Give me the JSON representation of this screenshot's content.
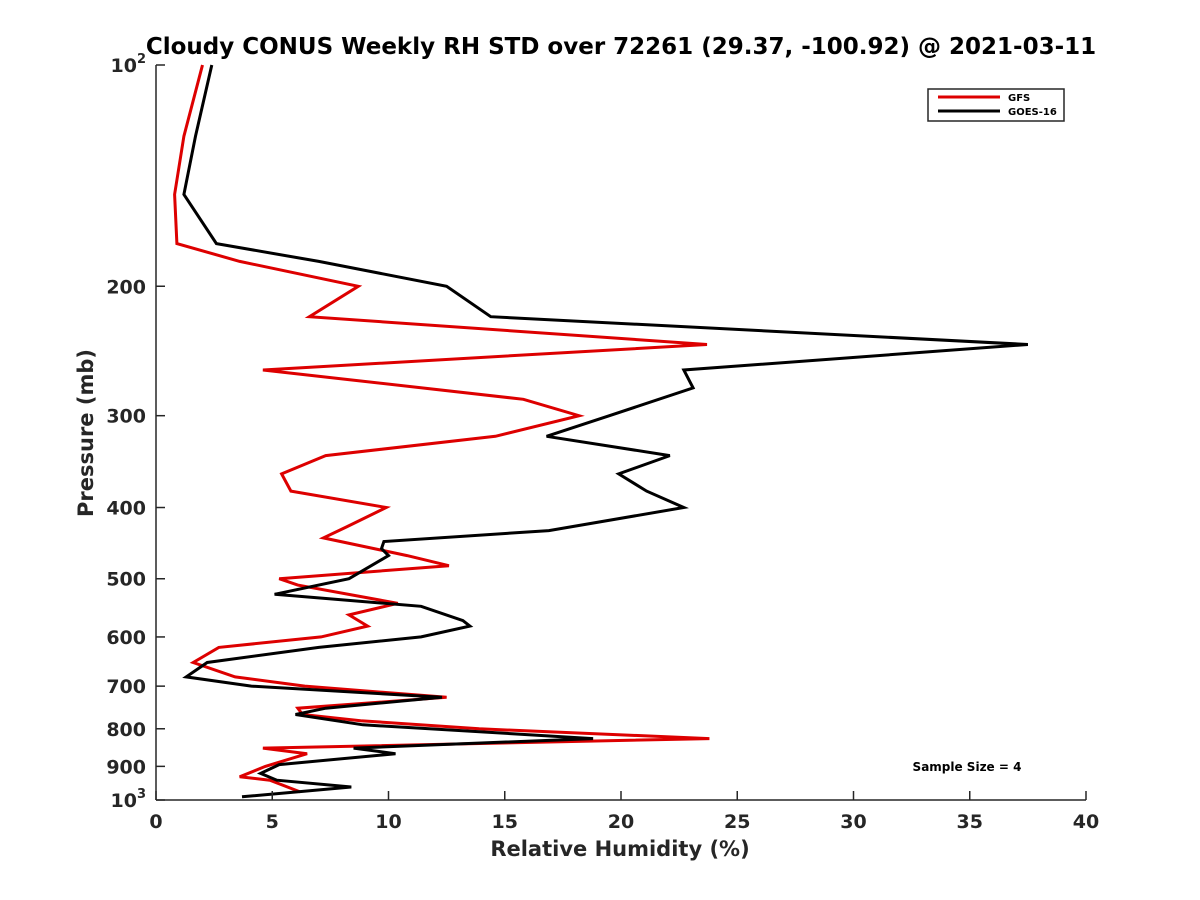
{
  "chart_data": {
    "type": "line",
    "title": "Cloudy CONUS Weekly RH STD over 72261 (29.37, -100.92) @ 2021-03-11",
    "xlabel": "Relative Humidity (%)",
    "ylabel": "Pressure (mb)",
    "xlim": [
      0,
      40
    ],
    "ylim": [
      100,
      1000
    ],
    "y_scale": "log",
    "y_reversed": true,
    "x_ticks": [
      0,
      5,
      10,
      15,
      20,
      25,
      30,
      35,
      40
    ],
    "x_tick_labels": [
      "0",
      "5",
      "10",
      "15",
      "20",
      "25",
      "30",
      "35",
      "40"
    ],
    "y_ticks": [
      100,
      200,
      300,
      400,
      500,
      600,
      700,
      800,
      900,
      1000
    ],
    "y_tick_labels": [
      {
        "base": "10",
        "sup": "2"
      },
      {
        "base": "200"
      },
      {
        "base": "300"
      },
      {
        "base": "400"
      },
      {
        "base": "500"
      },
      {
        "base": "600"
      },
      {
        "base": "700"
      },
      {
        "base": "800"
      },
      {
        "base": "900"
      },
      {
        "base": "10",
        "sup": "3"
      }
    ],
    "grid": false,
    "legend_position": "top-right",
    "annotation": "Sample Size = 4",
    "series": [
      {
        "name": "GFS",
        "color": "#dd0000",
        "points": [
          [
            2.0,
            100
          ],
          [
            1.2,
            125
          ],
          [
            0.8,
            150
          ],
          [
            0.9,
            175
          ],
          [
            3.6,
            185
          ],
          [
            8.7,
            200
          ],
          [
            6.6,
            220
          ],
          [
            23.7,
            240
          ],
          [
            4.6,
            260
          ],
          [
            15.8,
            285
          ],
          [
            18.2,
            300
          ],
          [
            14.6,
            320
          ],
          [
            7.3,
            340
          ],
          [
            5.4,
            360
          ],
          [
            5.8,
            380
          ],
          [
            9.9,
            400
          ],
          [
            8.2,
            425
          ],
          [
            7.2,
            440
          ],
          [
            10.8,
            465
          ],
          [
            12.6,
            480
          ],
          [
            5.3,
            500
          ],
          [
            6.1,
            510
          ],
          [
            10.4,
            540
          ],
          [
            8.3,
            560
          ],
          [
            9.1,
            580
          ],
          [
            7.1,
            600
          ],
          [
            2.7,
            620
          ],
          [
            1.6,
            650
          ],
          [
            3.4,
            680
          ],
          [
            6.4,
            700
          ],
          [
            12.5,
            725
          ],
          [
            6.1,
            750
          ],
          [
            6.3,
            765
          ],
          [
            8.8,
            780
          ],
          [
            13.9,
            800
          ],
          [
            23.8,
            825
          ],
          [
            4.6,
            850
          ],
          [
            6.5,
            865
          ],
          [
            4.7,
            900
          ],
          [
            3.6,
            930
          ],
          [
            4.9,
            940
          ],
          [
            6.2,
            975
          ]
        ]
      },
      {
        "name": "GOES-16",
        "color": "#000000",
        "points": [
          [
            2.4,
            100
          ],
          [
            1.7,
            125
          ],
          [
            1.2,
            150
          ],
          [
            2.6,
            175
          ],
          [
            7.0,
            185
          ],
          [
            12.5,
            200
          ],
          [
            14.4,
            220
          ],
          [
            37.5,
            240
          ],
          [
            22.7,
            260
          ],
          [
            23.1,
            275
          ],
          [
            19.5,
            300
          ],
          [
            16.8,
            320
          ],
          [
            22.1,
            340
          ],
          [
            19.9,
            360
          ],
          [
            21.1,
            380
          ],
          [
            22.7,
            400
          ],
          [
            16.9,
            430
          ],
          [
            9.8,
            445
          ],
          [
            9.7,
            455
          ],
          [
            10.0,
            465
          ],
          [
            8.3,
            500
          ],
          [
            5.1,
            525
          ],
          [
            11.4,
            545
          ],
          [
            13.2,
            570
          ],
          [
            13.5,
            580
          ],
          [
            11.4,
            600
          ],
          [
            7.0,
            620
          ],
          [
            2.2,
            650
          ],
          [
            1.3,
            680
          ],
          [
            4.1,
            700
          ],
          [
            12.3,
            725
          ],
          [
            7.3,
            750
          ],
          [
            6.0,
            765
          ],
          [
            8.9,
            790
          ],
          [
            18.8,
            825
          ],
          [
            8.5,
            850
          ],
          [
            10.3,
            865
          ],
          [
            5.3,
            895
          ],
          [
            4.5,
            920
          ],
          [
            5.2,
            940
          ],
          [
            8.4,
            960
          ],
          [
            3.7,
            990
          ]
        ]
      }
    ]
  }
}
